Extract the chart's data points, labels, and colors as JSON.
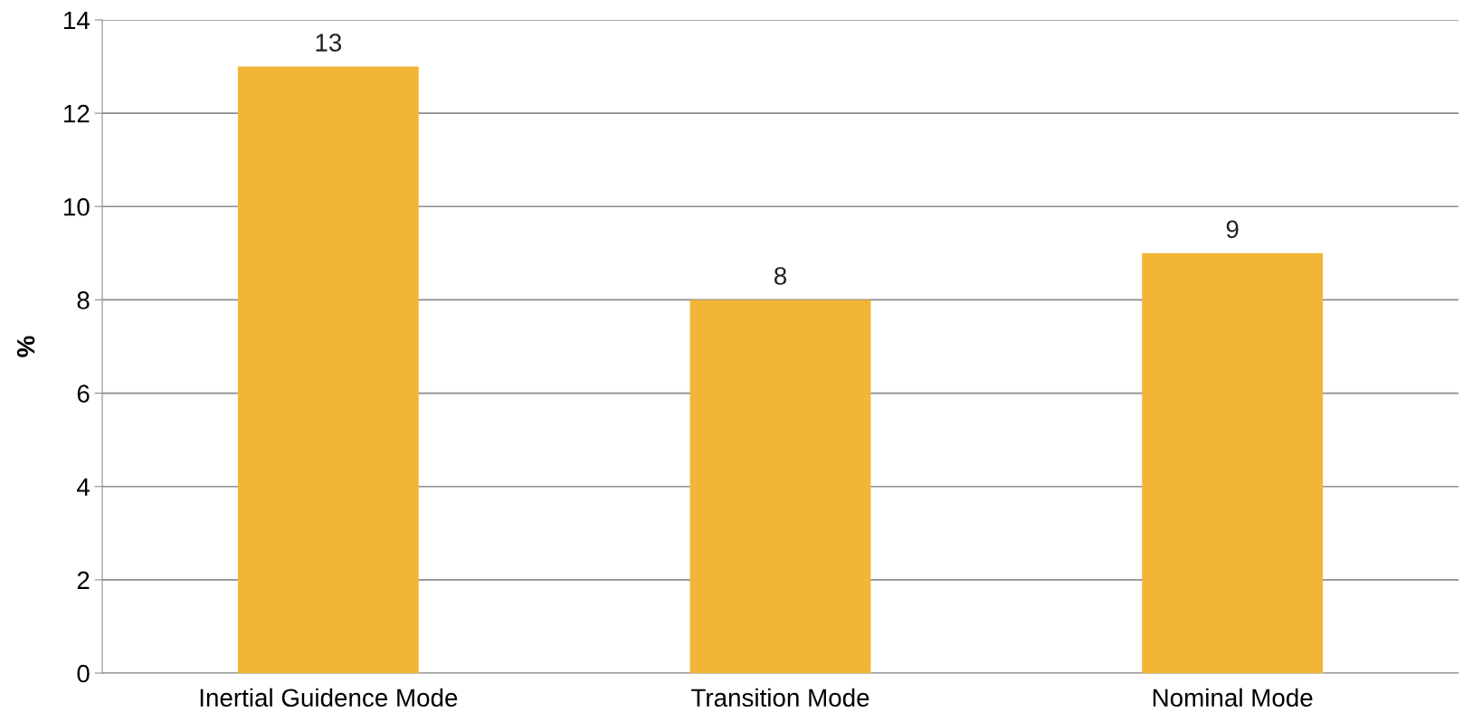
{
  "chart_data": {
    "type": "bar",
    "ylabel": "%",
    "categories": [
      "Inertial Guidence Mode",
      "Transition Mode",
      "Nominal Mode"
    ],
    "values": [
      13,
      8,
      9
    ],
    "color": "#f2b536",
    "ylim": [
      0,
      14
    ],
    "yticks": [
      0,
      2,
      4,
      6,
      8,
      10,
      12,
      14
    ],
    "grid": "y",
    "data_labels": true
  }
}
